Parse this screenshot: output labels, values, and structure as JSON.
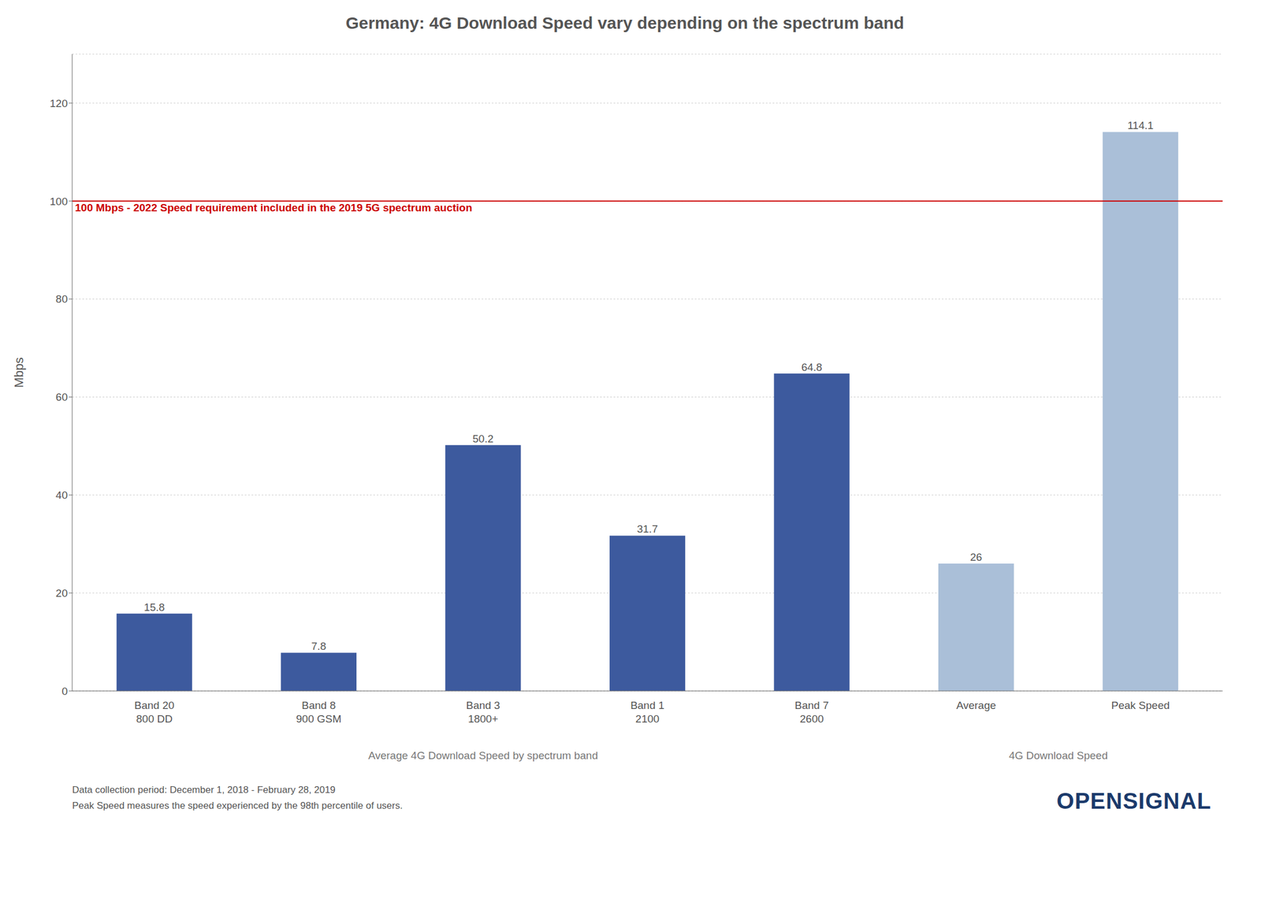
{
  "chart_data": {
    "type": "bar",
    "title": "Germany: 4G Download Speed vary depending on the spectrum band",
    "ylabel": "Mbps",
    "categories": [
      "Band 20\n800 DD",
      "Band 8\n900 GSM",
      "Band 3\n1800+",
      "Band 1\n2100",
      "Band 7\n2600",
      "Average",
      "Peak Speed"
    ],
    "values": [
      15.8,
      7.8,
      50.2,
      31.7,
      64.8,
      26.0,
      114.1
    ],
    "colors": [
      "#3D5A9E",
      "#3D5A9E",
      "#3D5A9E",
      "#3D5A9E",
      "#3D5A9E",
      "#AABFD8",
      "#AABFD8"
    ],
    "ylim": [
      0,
      130
    ],
    "yticks": [
      0,
      20,
      40,
      60,
      80,
      100,
      120
    ],
    "grid": true,
    "data_labels": true,
    "reference_line": {
      "y": 100,
      "label": "100 Mbps - 2022 Speed requirement included in the 2019 5G spectrum auction",
      "color": "#CC0000"
    },
    "groups": [
      {
        "label": "Average 4G Download Speed by spectrum band",
        "categories": [
          "Band 20\n800 DD",
          "Band 8\n900 GSM",
          "Band 3\n1800+",
          "Band 1\n2100",
          "Band 7\n2600"
        ]
      },
      {
        "label": "4G Download Speed",
        "categories": [
          "Average",
          "Peak Speed"
        ]
      }
    ],
    "footnotes": [
      "Data collection period: December 1, 2018 - February 28, 2019",
      "Peak Speed measures the speed experienced by the 98th percentile of users."
    ],
    "logo": {
      "text": "OPENSIGNAL",
      "color": "#1B3A6B"
    }
  }
}
